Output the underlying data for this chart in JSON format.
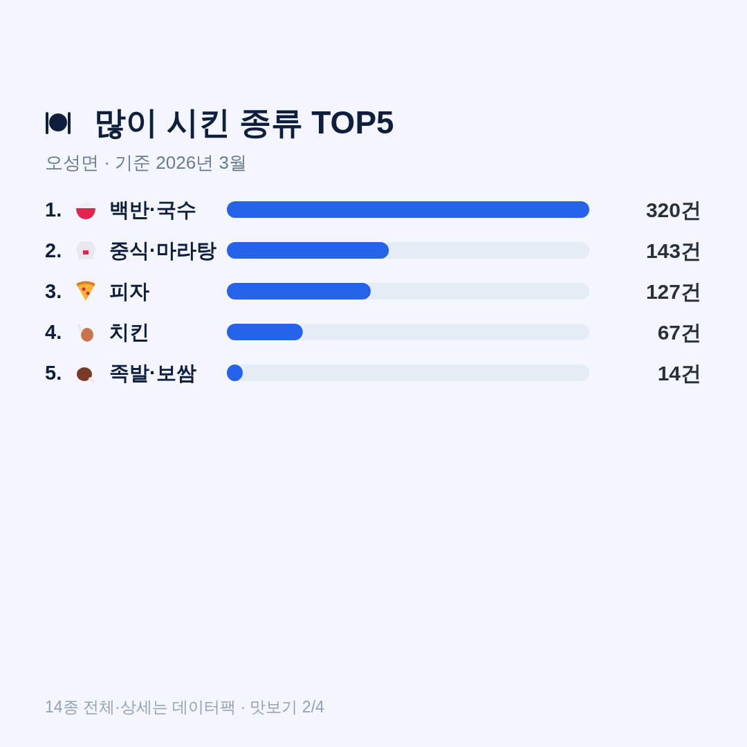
{
  "chart_data": {
    "type": "bar",
    "orientation": "horizontal",
    "title": "많이 시킨 종류 TOP5",
    "subtitle": "오성면 · 기준 2026년 3월",
    "categories": [
      "1. 백반·국수",
      "2. 중식·마라탕",
      "3. 피자",
      "4. 치킨",
      "5. 족발·보쌈"
    ],
    "values": [
      320,
      143,
      127,
      67,
      14
    ],
    "value_labels": [
      "320건",
      "143건",
      "127건",
      "67건",
      "14건"
    ],
    "color": "#2563eb",
    "annotations": [
      "14종 전체·상세는 데이터팩 · 맛보기 2/4"
    ]
  }
}
